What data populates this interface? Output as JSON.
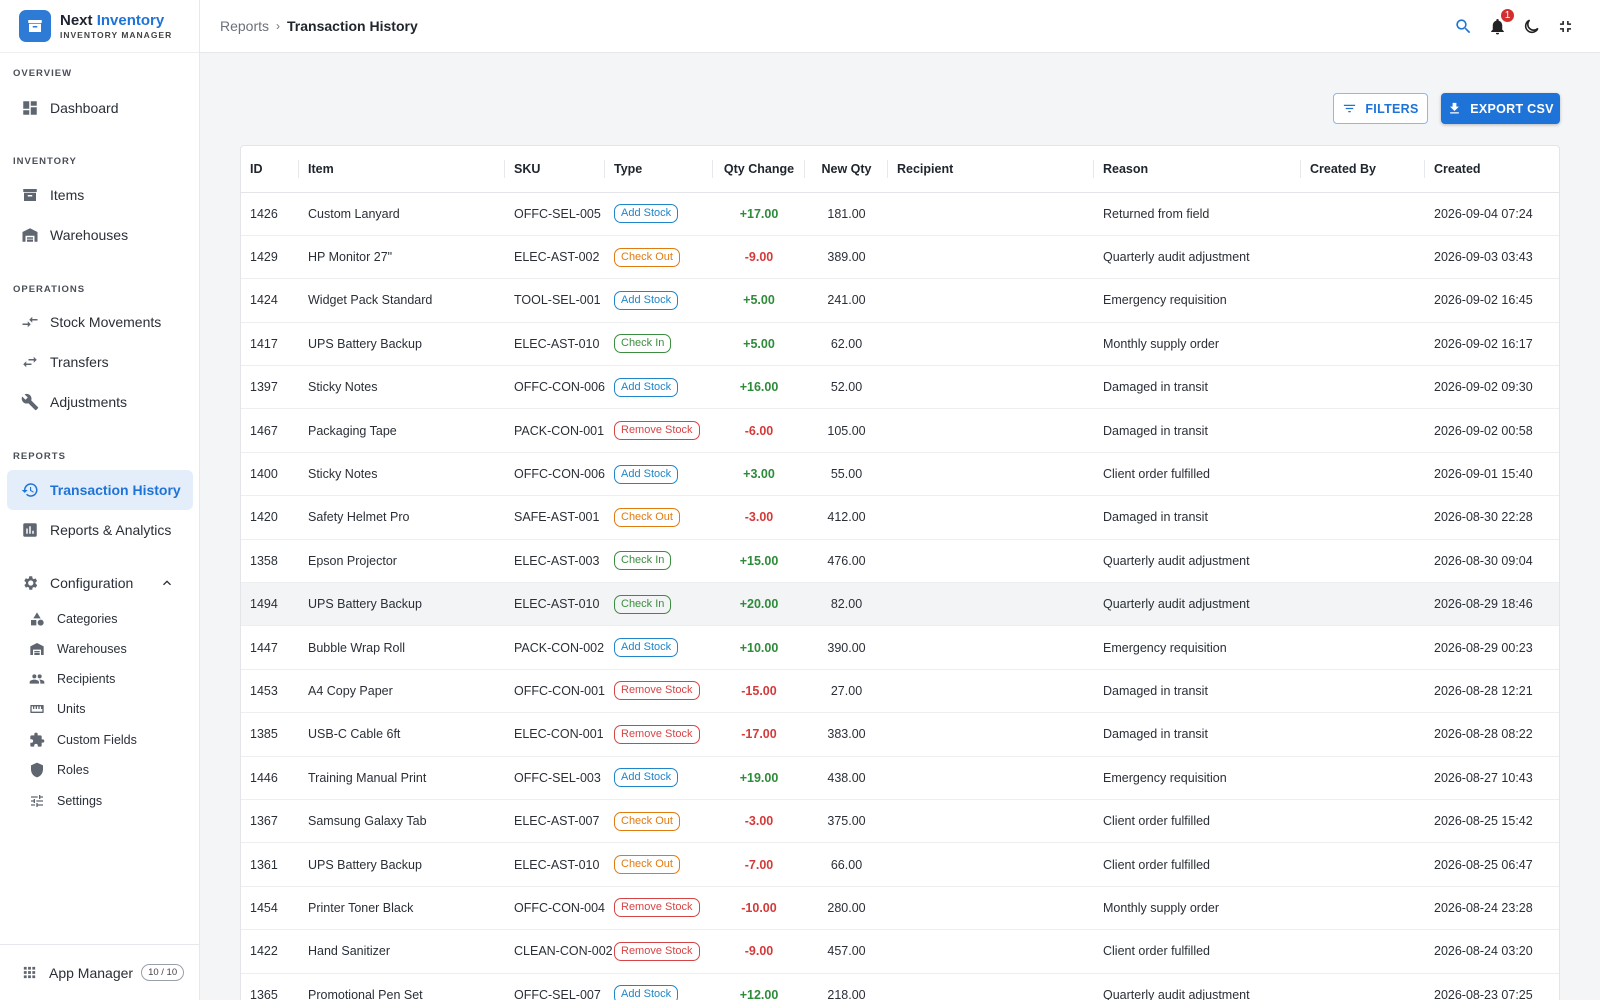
{
  "brand": {
    "name_part1": "Next",
    "name_part2": "Inventory",
    "subtitle": "INVENTORY MANAGER"
  },
  "sidebar": {
    "sections": [
      "OVERVIEW",
      "INVENTORY",
      "OPERATIONS",
      "REPORTS"
    ],
    "items": {
      "dashboard": "Dashboard",
      "items": "Items",
      "warehouses": "Warehouses",
      "stock_movements": "Stock Movements",
      "transfers": "Transfers",
      "adjustments": "Adjustments",
      "transaction_history": "Transaction History",
      "reports_analytics": "Reports & Analytics",
      "configuration": "Configuration"
    },
    "config_sub": [
      "Categories",
      "Warehouses",
      "Recipients",
      "Units",
      "Custom Fields",
      "Roles",
      "Settings"
    ],
    "app_manager": {
      "label": "App Manager",
      "count": "10 / 10"
    }
  },
  "topbar": {
    "breadcrumb_parent": "Reports",
    "breadcrumb_sep": "›",
    "breadcrumb_current": "Transaction History",
    "notification_count": "1"
  },
  "actions": {
    "filters": "FILTERS",
    "export": "EXPORT CSV"
  },
  "table": {
    "columns": [
      "ID",
      "Item",
      "SKU",
      "Type",
      "Qty Change",
      "New Qty",
      "Recipient",
      "Reason",
      "Created By",
      "Created"
    ],
    "rows": [
      {
        "id": "1426",
        "item": "Custom Lanyard",
        "sku": "OFFC-SEL-005",
        "type": "Add Stock",
        "kind": "add",
        "qty": "+17.00",
        "new_qty": "181.00",
        "recipient": "",
        "reason": "Returned from field",
        "created_by": "",
        "created": "2026-09-04 07:24"
      },
      {
        "id": "1429",
        "item": "HP Monitor 27\"",
        "sku": "ELEC-AST-002",
        "type": "Check Out",
        "kind": "checkout",
        "qty": "-9.00",
        "new_qty": "389.00",
        "recipient": "",
        "reason": "Quarterly audit adjustment",
        "created_by": "",
        "created": "2026-09-03 03:43"
      },
      {
        "id": "1424",
        "item": "Widget Pack Standard",
        "sku": "TOOL-SEL-001",
        "type": "Add Stock",
        "kind": "add",
        "qty": "+5.00",
        "new_qty": "241.00",
        "recipient": "",
        "reason": "Emergency requisition",
        "created_by": "",
        "created": "2026-09-02 16:45"
      },
      {
        "id": "1417",
        "item": "UPS Battery Backup",
        "sku": "ELEC-AST-010",
        "type": "Check In",
        "kind": "checkin",
        "qty": "+5.00",
        "new_qty": "62.00",
        "recipient": "",
        "reason": "Monthly supply order",
        "created_by": "",
        "created": "2026-09-02 16:17"
      },
      {
        "id": "1397",
        "item": "Sticky Notes",
        "sku": "OFFC-CON-006",
        "type": "Add Stock",
        "kind": "add",
        "qty": "+16.00",
        "new_qty": "52.00",
        "recipient": "",
        "reason": "Damaged in transit",
        "created_by": "",
        "created": "2026-09-02 09:30"
      },
      {
        "id": "1467",
        "item": "Packaging Tape",
        "sku": "PACK-CON-001",
        "type": "Remove Stock",
        "kind": "remove",
        "qty": "-6.00",
        "new_qty": "105.00",
        "recipient": "",
        "reason": "Damaged in transit",
        "created_by": "",
        "created": "2026-09-02 00:58"
      },
      {
        "id": "1400",
        "item": "Sticky Notes",
        "sku": "OFFC-CON-006",
        "type": "Add Stock",
        "kind": "add",
        "qty": "+3.00",
        "new_qty": "55.00",
        "recipient": "",
        "reason": "Client order fulfilled",
        "created_by": "",
        "created": "2026-09-01 15:40"
      },
      {
        "id": "1420",
        "item": "Safety Helmet Pro",
        "sku": "SAFE-AST-001",
        "type": "Check Out",
        "kind": "checkout",
        "qty": "-3.00",
        "new_qty": "412.00",
        "recipient": "",
        "reason": "Damaged in transit",
        "created_by": "",
        "created": "2026-08-30 22:28"
      },
      {
        "id": "1358",
        "item": "Epson Projector",
        "sku": "ELEC-AST-003",
        "type": "Check In",
        "kind": "checkin",
        "qty": "+15.00",
        "new_qty": "476.00",
        "recipient": "",
        "reason": "Quarterly audit adjustment",
        "created_by": "",
        "created": "2026-08-30 09:04"
      },
      {
        "id": "1494",
        "item": "UPS Battery Backup",
        "sku": "ELEC-AST-010",
        "type": "Check In",
        "kind": "checkin",
        "qty": "+20.00",
        "new_qty": "82.00",
        "recipient": "",
        "reason": "Quarterly audit adjustment",
        "created_by": "",
        "created": "2026-08-29 18:46",
        "hover": true
      },
      {
        "id": "1447",
        "item": "Bubble Wrap Roll",
        "sku": "PACK-CON-002",
        "type": "Add Stock",
        "kind": "add",
        "qty": "+10.00",
        "new_qty": "390.00",
        "recipient": "",
        "reason": "Emergency requisition",
        "created_by": "",
        "created": "2026-08-29 00:23"
      },
      {
        "id": "1453",
        "item": "A4 Copy Paper",
        "sku": "OFFC-CON-001",
        "type": "Remove Stock",
        "kind": "remove",
        "qty": "-15.00",
        "new_qty": "27.00",
        "recipient": "",
        "reason": "Damaged in transit",
        "created_by": "",
        "created": "2026-08-28 12:21"
      },
      {
        "id": "1385",
        "item": "USB-C Cable 6ft",
        "sku": "ELEC-CON-001",
        "type": "Remove Stock",
        "kind": "remove",
        "qty": "-17.00",
        "new_qty": "383.00",
        "recipient": "",
        "reason": "Damaged in transit",
        "created_by": "",
        "created": "2026-08-28 08:22"
      },
      {
        "id": "1446",
        "item": "Training Manual Print",
        "sku": "OFFC-SEL-003",
        "type": "Add Stock",
        "kind": "add",
        "qty": "+19.00",
        "new_qty": "438.00",
        "recipient": "",
        "reason": "Emergency requisition",
        "created_by": "",
        "created": "2026-08-27 10:43"
      },
      {
        "id": "1367",
        "item": "Samsung Galaxy Tab",
        "sku": "ELEC-AST-007",
        "type": "Check Out",
        "kind": "checkout",
        "qty": "-3.00",
        "new_qty": "375.00",
        "recipient": "",
        "reason": "Client order fulfilled",
        "created_by": "",
        "created": "2026-08-25 15:42"
      },
      {
        "id": "1361",
        "item": "UPS Battery Backup",
        "sku": "ELEC-AST-010",
        "type": "Check Out",
        "kind": "checkout",
        "qty": "-7.00",
        "new_qty": "66.00",
        "recipient": "",
        "reason": "Client order fulfilled",
        "created_by": "",
        "created": "2026-08-25 06:47"
      },
      {
        "id": "1454",
        "item": "Printer Toner Black",
        "sku": "OFFC-CON-004",
        "type": "Remove Stock",
        "kind": "remove",
        "qty": "-10.00",
        "new_qty": "280.00",
        "recipient": "",
        "reason": "Monthly supply order",
        "created_by": "",
        "created": "2026-08-24 23:28"
      },
      {
        "id": "1422",
        "item": "Hand Sanitizer",
        "sku": "CLEAN-CON-002",
        "type": "Remove Stock",
        "kind": "remove",
        "qty": "-9.00",
        "new_qty": "457.00",
        "recipient": "",
        "reason": "Client order fulfilled",
        "created_by": "",
        "created": "2026-08-24 03:20"
      },
      {
        "id": "1365",
        "item": "Promotional Pen Set",
        "sku": "OFFC-SEL-007",
        "type": "Add Stock",
        "kind": "add",
        "qty": "+12.00",
        "new_qty": "218.00",
        "recipient": "",
        "reason": "Quarterly audit adjustment",
        "created_by": "",
        "created": "2026-08-23 07:25"
      }
    ]
  },
  "colors": {
    "accent": "#1e73d8",
    "positive": "#2e8b3a",
    "negative": "#d43a3a",
    "add": "#1f86c9",
    "checkout": "#e07b10",
    "checkin": "#3b8d3f",
    "remove": "#d64545"
  }
}
